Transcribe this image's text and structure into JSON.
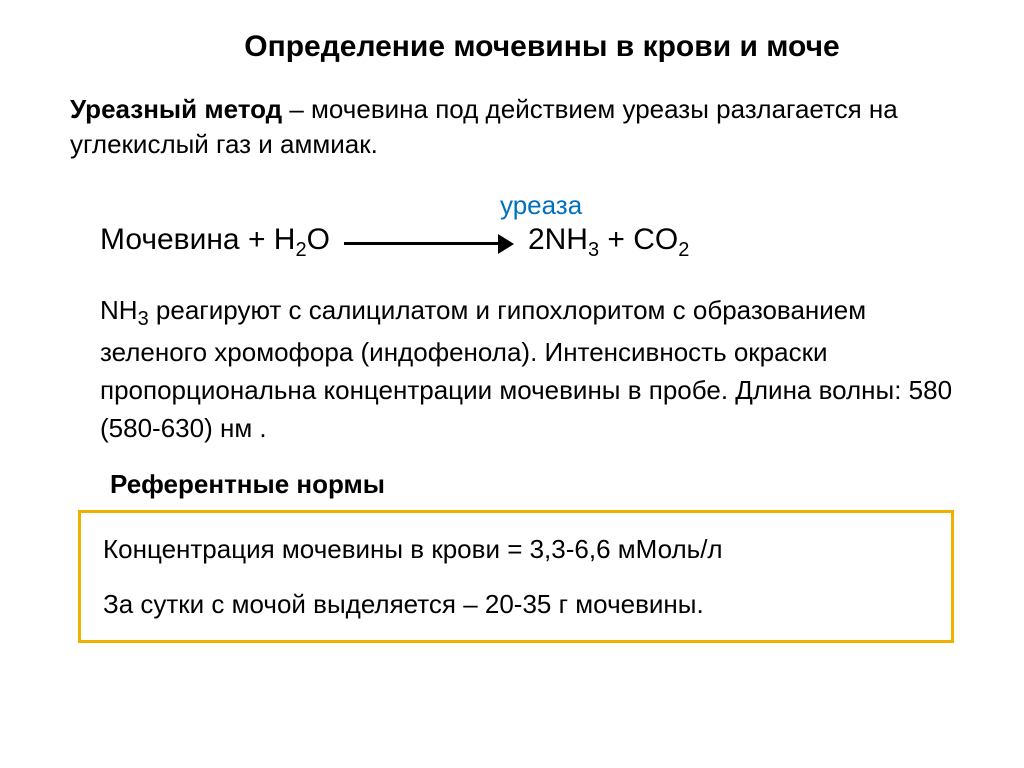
{
  "title": "Определение мочевины в крови и моче",
  "method": {
    "name": "Уреазный метод",
    "desc": " – мочевина под действием уреазы разлагается на углекислый газ и аммиак."
  },
  "equation": {
    "enzyme": "уреаза",
    "left1": "Мочевина +  H",
    "left1_sub": "2",
    "left2": "O",
    "right1": "2NH",
    "right1_sub": "3",
    "right2": "  + CO",
    "right2_sub": "2"
  },
  "explain": {
    "l1a": "NH",
    "l1sub": "3",
    "l1b": " реагируют с салицилатом и гипохлоритом с образованием зеленого хромофора (индофенола). Интенсивность окраски пропорциональна концентрации мочевины в пробе. Длина волны: 580 (580-630) нм ."
  },
  "ref": {
    "heading": "Референтные нормы",
    "line1": "Концентрация мочевины в крови = 3,3-6,6 мМоль/л",
    "line2": "За сутки с мочой выделяется – 20-35 г мочевины."
  },
  "colors": {
    "enzyme": "#0070c0",
    "box_border": "#f0b000",
    "text": "#000000",
    "bg": "#ffffff"
  }
}
